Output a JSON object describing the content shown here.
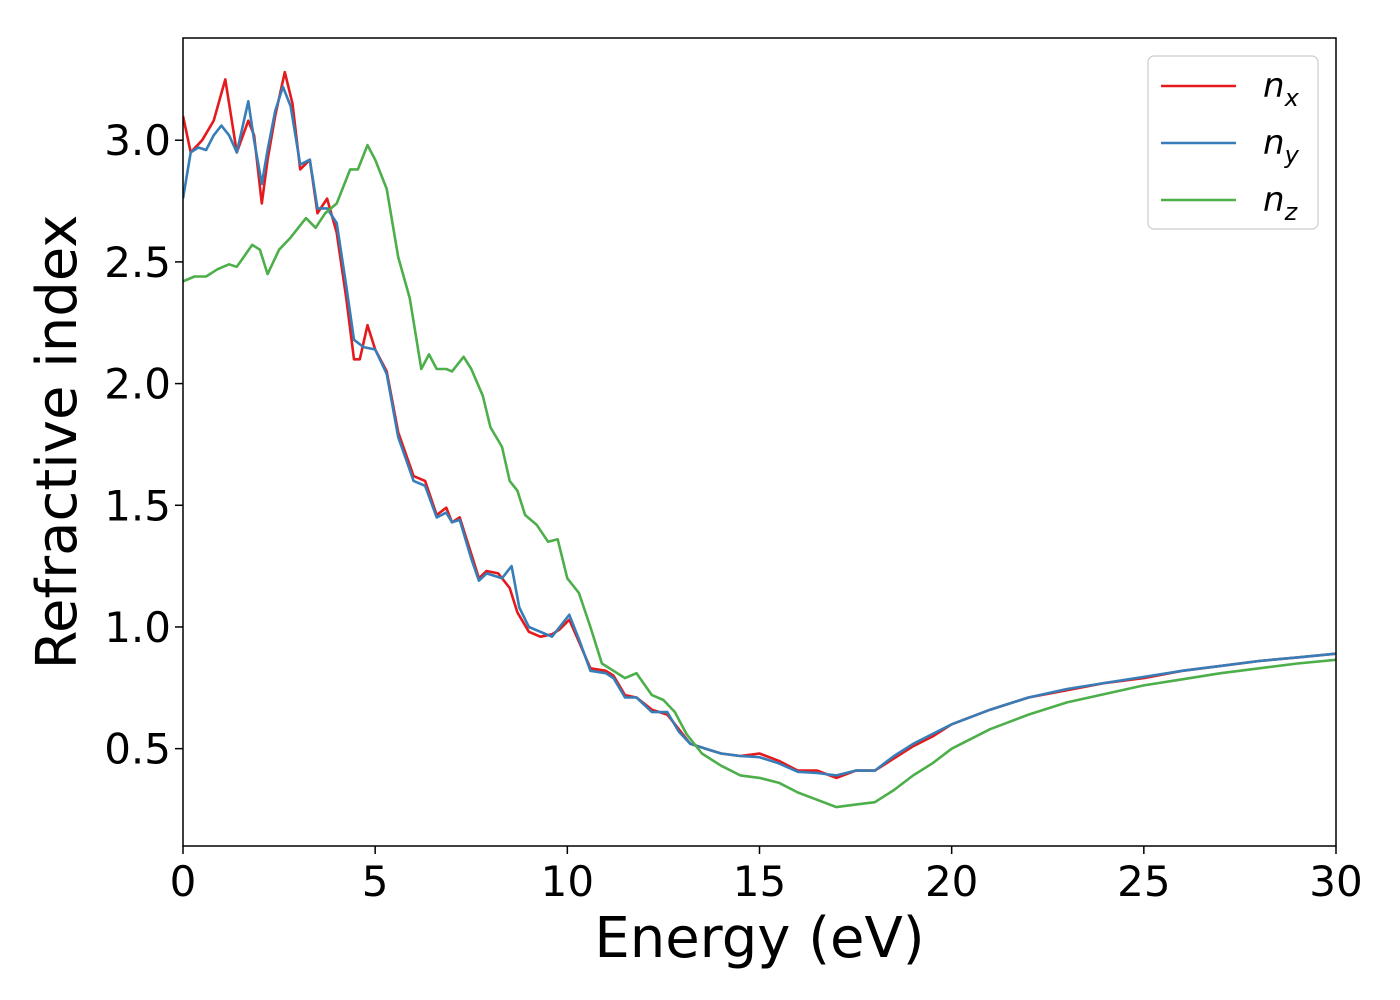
{
  "chart_data": {
    "type": "line",
    "xlabel": "Energy (eV)",
    "ylabel": "Refractive index",
    "xlim": [
      0,
      30
    ],
    "ylim": [
      0.1,
      3.42
    ],
    "xticks": [
      0,
      5,
      10,
      15,
      20,
      25,
      30
    ],
    "yticks": [
      0.5,
      1.0,
      1.5,
      2.0,
      2.5,
      3.0
    ],
    "legend_position": "top-right",
    "grid": false,
    "series": [
      {
        "name": "n_x",
        "base": "n",
        "sub": "x",
        "color": "#e41a1c",
        "points": [
          [
            0,
            3.1
          ],
          [
            0.2,
            2.95
          ],
          [
            0.5,
            3.0
          ],
          [
            0.8,
            3.08
          ],
          [
            1.1,
            3.25
          ],
          [
            1.4,
            2.95
          ],
          [
            1.7,
            3.08
          ],
          [
            1.85,
            3.02
          ],
          [
            2.05,
            2.74
          ],
          [
            2.2,
            2.92
          ],
          [
            2.4,
            3.1
          ],
          [
            2.65,
            3.28
          ],
          [
            2.85,
            3.15
          ],
          [
            3.05,
            2.88
          ],
          [
            3.3,
            2.92
          ],
          [
            3.5,
            2.7
          ],
          [
            3.75,
            2.76
          ],
          [
            4.0,
            2.62
          ],
          [
            4.25,
            2.35
          ],
          [
            4.45,
            2.1
          ],
          [
            4.6,
            2.1
          ],
          [
            4.8,
            2.24
          ],
          [
            5.0,
            2.14
          ],
          [
            5.3,
            2.05
          ],
          [
            5.6,
            1.8
          ],
          [
            6.0,
            1.62
          ],
          [
            6.3,
            1.6
          ],
          [
            6.6,
            1.46
          ],
          [
            6.85,
            1.49
          ],
          [
            7.0,
            1.43
          ],
          [
            7.2,
            1.45
          ],
          [
            7.5,
            1.3
          ],
          [
            7.7,
            1.2
          ],
          [
            7.9,
            1.23
          ],
          [
            8.2,
            1.22
          ],
          [
            8.5,
            1.16
          ],
          [
            8.7,
            1.06
          ],
          [
            9.0,
            0.98
          ],
          [
            9.3,
            0.96
          ],
          [
            9.6,
            0.97
          ],
          [
            9.8,
            0.99
          ],
          [
            10.05,
            1.03
          ],
          [
            10.3,
            0.94
          ],
          [
            10.6,
            0.83
          ],
          [
            11.0,
            0.82
          ],
          [
            11.2,
            0.8
          ],
          [
            11.5,
            0.72
          ],
          [
            11.8,
            0.71
          ],
          [
            12.2,
            0.66
          ],
          [
            12.6,
            0.64
          ],
          [
            12.9,
            0.58
          ],
          [
            13.2,
            0.52
          ],
          [
            13.6,
            0.5
          ],
          [
            14.0,
            0.48
          ],
          [
            14.5,
            0.47
          ],
          [
            15.0,
            0.48
          ],
          [
            15.5,
            0.45
          ],
          [
            16.0,
            0.41
          ],
          [
            16.5,
            0.41
          ],
          [
            17.0,
            0.38
          ],
          [
            17.5,
            0.41
          ],
          [
            18.0,
            0.41
          ],
          [
            18.5,
            0.46
          ],
          [
            19.0,
            0.51
          ],
          [
            19.5,
            0.55
          ],
          [
            20.0,
            0.6
          ],
          [
            21.0,
            0.66
          ],
          [
            22.0,
            0.71
          ],
          [
            23.0,
            0.74
          ],
          [
            24.0,
            0.77
          ],
          [
            25.0,
            0.79
          ],
          [
            26.0,
            0.82
          ],
          [
            27.0,
            0.84
          ],
          [
            28.0,
            0.86
          ],
          [
            29.0,
            0.875
          ],
          [
            30.0,
            0.89
          ]
        ]
      },
      {
        "name": "n_y",
        "base": "n",
        "sub": "y",
        "color": "#377eb8",
        "points": [
          [
            0,
            2.76
          ],
          [
            0.2,
            2.95
          ],
          [
            0.4,
            2.97
          ],
          [
            0.6,
            2.96
          ],
          [
            0.8,
            3.02
          ],
          [
            1.0,
            3.06
          ],
          [
            1.2,
            3.02
          ],
          [
            1.4,
            2.95
          ],
          [
            1.7,
            3.16
          ],
          [
            1.85,
            3.0
          ],
          [
            2.05,
            2.82
          ],
          [
            2.2,
            2.96
          ],
          [
            2.4,
            3.12
          ],
          [
            2.6,
            3.22
          ],
          [
            2.8,
            3.14
          ],
          [
            3.05,
            2.9
          ],
          [
            3.3,
            2.92
          ],
          [
            3.5,
            2.72
          ],
          [
            3.75,
            2.72
          ],
          [
            4.0,
            2.66
          ],
          [
            4.25,
            2.4
          ],
          [
            4.45,
            2.18
          ],
          [
            4.7,
            2.15
          ],
          [
            5.0,
            2.14
          ],
          [
            5.3,
            2.04
          ],
          [
            5.6,
            1.78
          ],
          [
            6.0,
            1.6
          ],
          [
            6.3,
            1.58
          ],
          [
            6.6,
            1.45
          ],
          [
            6.85,
            1.47
          ],
          [
            7.0,
            1.43
          ],
          [
            7.2,
            1.44
          ],
          [
            7.5,
            1.28
          ],
          [
            7.7,
            1.19
          ],
          [
            7.9,
            1.22
          ],
          [
            8.3,
            1.2
          ],
          [
            8.55,
            1.25
          ],
          [
            8.75,
            1.08
          ],
          [
            9.0,
            1.0
          ],
          [
            9.3,
            0.98
          ],
          [
            9.6,
            0.96
          ],
          [
            9.8,
            1.0
          ],
          [
            10.05,
            1.05
          ],
          [
            10.3,
            0.95
          ],
          [
            10.6,
            0.82
          ],
          [
            11.0,
            0.81
          ],
          [
            11.2,
            0.79
          ],
          [
            11.5,
            0.71
          ],
          [
            11.8,
            0.71
          ],
          [
            12.2,
            0.65
          ],
          [
            12.6,
            0.65
          ],
          [
            12.9,
            0.57
          ],
          [
            13.2,
            0.52
          ],
          [
            13.6,
            0.5
          ],
          [
            14.0,
            0.48
          ],
          [
            14.5,
            0.47
          ],
          [
            15.0,
            0.465
          ],
          [
            15.5,
            0.44
          ],
          [
            16.0,
            0.405
          ],
          [
            16.5,
            0.4
          ],
          [
            17.0,
            0.39
          ],
          [
            17.5,
            0.41
          ],
          [
            18.0,
            0.41
          ],
          [
            18.5,
            0.47
          ],
          [
            19.0,
            0.52
          ],
          [
            19.5,
            0.56
          ],
          [
            20.0,
            0.6
          ],
          [
            21.0,
            0.66
          ],
          [
            22.0,
            0.71
          ],
          [
            23.0,
            0.745
          ],
          [
            24.0,
            0.77
          ],
          [
            25.0,
            0.795
          ],
          [
            26.0,
            0.82
          ],
          [
            27.0,
            0.84
          ],
          [
            28.0,
            0.86
          ],
          [
            29.0,
            0.875
          ],
          [
            30.0,
            0.89
          ]
        ]
      },
      {
        "name": "n_z",
        "base": "n",
        "sub": "z",
        "color": "#4daf4a",
        "points": [
          [
            0,
            2.42
          ],
          [
            0.3,
            2.44
          ],
          [
            0.6,
            2.44
          ],
          [
            0.9,
            2.47
          ],
          [
            1.2,
            2.49
          ],
          [
            1.4,
            2.48
          ],
          [
            1.8,
            2.57
          ],
          [
            2.0,
            2.55
          ],
          [
            2.2,
            2.45
          ],
          [
            2.5,
            2.55
          ],
          [
            2.8,
            2.6
          ],
          [
            3.2,
            2.68
          ],
          [
            3.45,
            2.64
          ],
          [
            3.7,
            2.7
          ],
          [
            4.0,
            2.74
          ],
          [
            4.2,
            2.82
          ],
          [
            4.35,
            2.88
          ],
          [
            4.55,
            2.88
          ],
          [
            4.8,
            2.98
          ],
          [
            5.0,
            2.92
          ],
          [
            5.3,
            2.8
          ],
          [
            5.6,
            2.52
          ],
          [
            5.9,
            2.35
          ],
          [
            6.2,
            2.06
          ],
          [
            6.4,
            2.12
          ],
          [
            6.6,
            2.06
          ],
          [
            6.85,
            2.06
          ],
          [
            7.0,
            2.05
          ],
          [
            7.3,
            2.11
          ],
          [
            7.5,
            2.06
          ],
          [
            7.8,
            1.95
          ],
          [
            8.0,
            1.82
          ],
          [
            8.3,
            1.74
          ],
          [
            8.5,
            1.6
          ],
          [
            8.7,
            1.56
          ],
          [
            8.9,
            1.46
          ],
          [
            9.2,
            1.42
          ],
          [
            9.5,
            1.35
          ],
          [
            9.75,
            1.36
          ],
          [
            10.0,
            1.2
          ],
          [
            10.3,
            1.14
          ],
          [
            10.6,
            1.0
          ],
          [
            10.9,
            0.85
          ],
          [
            11.2,
            0.82
          ],
          [
            11.5,
            0.79
          ],
          [
            11.8,
            0.81
          ],
          [
            12.2,
            0.72
          ],
          [
            12.5,
            0.7
          ],
          [
            12.8,
            0.65
          ],
          [
            13.1,
            0.56
          ],
          [
            13.5,
            0.48
          ],
          [
            14.0,
            0.43
          ],
          [
            14.5,
            0.39
          ],
          [
            15.0,
            0.38
          ],
          [
            15.5,
            0.36
          ],
          [
            16.0,
            0.32
          ],
          [
            16.5,
            0.29
          ],
          [
            17.0,
            0.26
          ],
          [
            17.5,
            0.27
          ],
          [
            18.0,
            0.28
          ],
          [
            18.5,
            0.33
          ],
          [
            19.0,
            0.39
          ],
          [
            19.5,
            0.44
          ],
          [
            20.0,
            0.5
          ],
          [
            21.0,
            0.58
          ],
          [
            22.0,
            0.64
          ],
          [
            23.0,
            0.69
          ],
          [
            24.0,
            0.725
          ],
          [
            25.0,
            0.76
          ],
          [
            26.0,
            0.785
          ],
          [
            27.0,
            0.81
          ],
          [
            28.0,
            0.83
          ],
          [
            29.0,
            0.85
          ],
          [
            30.0,
            0.865
          ]
        ]
      }
    ]
  }
}
